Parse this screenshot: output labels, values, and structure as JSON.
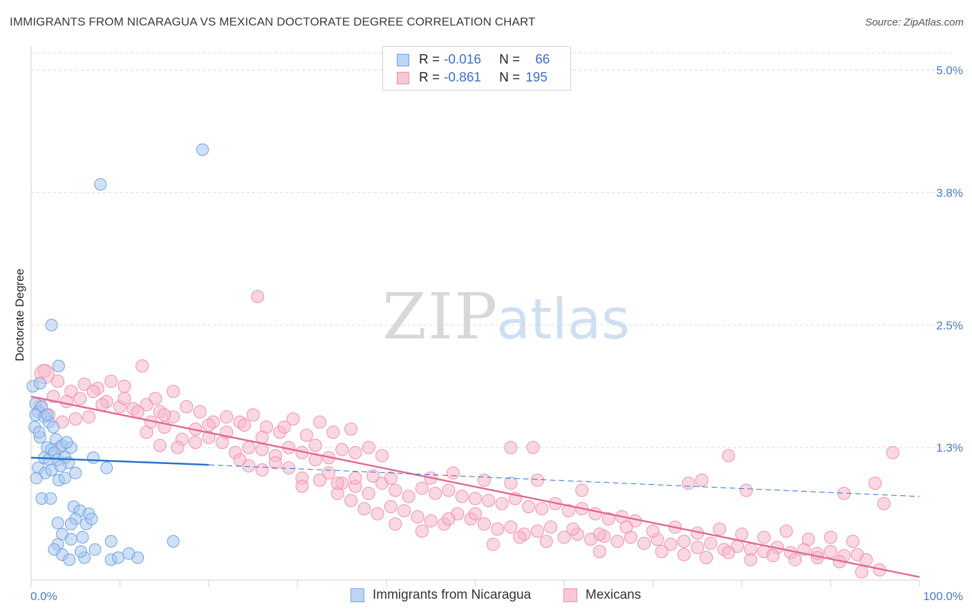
{
  "title": "IMMIGRANTS FROM NICARAGUA VS MEXICAN DOCTORATE DEGREE CORRELATION CHART",
  "source": "Source: ZipAtlas.com",
  "watermark": {
    "zip": "ZIP",
    "atlas": "atlas"
  },
  "legend": {
    "series1": {
      "r_label": "R =",
      "r_value": "-0.016",
      "n_label": "N =",
      "n_value": "66"
    },
    "series2": {
      "r_label": "R =",
      "r_value": "-0.861",
      "n_label": "N =",
      "n_value": "195"
    }
  },
  "bottom_legend": [
    "Immigrants from Nicaragua",
    "Mexicans"
  ],
  "colors": {
    "blue_fill": "#a9c8f0",
    "blue_stroke": "#6f9fde",
    "blue_line": "#2b6fc9",
    "pink_fill": "#f6b8cb",
    "pink_stroke": "#ee8fae",
    "pink_line": "#e06a97",
    "grid": "#d9d9d9",
    "tick": "#4a78c4"
  },
  "chart_data": {
    "type": "scatter",
    "title": "IMMIGRANTS FROM NICARAGUA VS MEXICAN DOCTORATE DEGREE CORRELATION CHART",
    "xlabel": "",
    "ylabel": "Doctorate Degree",
    "xlim": [
      0,
      100
    ],
    "ylim": [
      0,
      5.2
    ],
    "x_tick_labels": [
      "0.0%",
      "100.0%"
    ],
    "y_ticks": [
      1.3,
      2.5,
      3.8,
      5.0
    ],
    "y_tick_labels": [
      "1.3%",
      "2.5%",
      "3.8%",
      "5.0%"
    ],
    "grid": true,
    "legend_position": "top-center",
    "series": [
      {
        "name": "Immigrants from Nicaragua",
        "trend": {
          "x": [
            0,
            20
          ],
          "y": [
            1.2,
            1.13
          ],
          "dashed_to": [
            100,
            0.82
          ]
        },
        "points": [
          [
            0.2,
            1.9
          ],
          [
            1.0,
            1.93
          ],
          [
            0.5,
            1.73
          ],
          [
            0.8,
            1.65
          ],
          [
            1.2,
            1.7
          ],
          [
            0.5,
            1.62
          ],
          [
            1.5,
            1.6
          ],
          [
            0.4,
            1.5
          ],
          [
            2.0,
            1.55
          ],
          [
            2.5,
            1.5
          ],
          [
            1.0,
            1.4
          ],
          [
            1.8,
            1.3
          ],
          [
            2.8,
            1.38
          ],
          [
            3.2,
            1.3
          ],
          [
            2.3,
            1.28
          ],
          [
            3.5,
            1.32
          ],
          [
            4.5,
            1.3
          ],
          [
            1.5,
            1.2
          ],
          [
            2.0,
            1.18
          ],
          [
            2.6,
            1.25
          ],
          [
            3.0,
            1.18
          ],
          [
            3.8,
            1.2
          ],
          [
            4.2,
            1.15
          ],
          [
            0.8,
            1.1
          ],
          [
            1.6,
            1.05
          ],
          [
            2.3,
            1.08
          ],
          [
            3.1,
            0.98
          ],
          [
            3.8,
            1.0
          ],
          [
            5.0,
            1.05
          ],
          [
            0.6,
            1.0
          ],
          [
            7.0,
            1.2
          ],
          [
            8.5,
            1.1
          ],
          [
            1.2,
            0.8
          ],
          [
            2.2,
            0.8
          ],
          [
            4.8,
            0.72
          ],
          [
            5.5,
            0.68
          ],
          [
            6.5,
            0.65
          ],
          [
            5.0,
            0.6
          ],
          [
            4.5,
            0.55
          ],
          [
            6.2,
            0.55
          ],
          [
            6.8,
            0.6
          ],
          [
            3.0,
            0.56
          ],
          [
            3.5,
            0.45
          ],
          [
            4.5,
            0.4
          ],
          [
            5.8,
            0.42
          ],
          [
            9.0,
            0.38
          ],
          [
            3.5,
            0.25
          ],
          [
            4.3,
            0.2
          ],
          [
            6.0,
            0.22
          ],
          [
            9.0,
            0.2
          ],
          [
            9.8,
            0.22
          ],
          [
            12.0,
            0.22
          ],
          [
            16.0,
            0.38
          ],
          [
            3.0,
            0.35
          ],
          [
            2.6,
            0.3
          ],
          [
            5.6,
            0.28
          ],
          [
            7.2,
            0.3
          ],
          [
            11.0,
            0.26
          ],
          [
            2.3,
            2.5
          ],
          [
            3.1,
            2.1
          ],
          [
            7.8,
            3.88
          ],
          [
            19.3,
            4.22
          ],
          [
            0.9,
            1.45
          ],
          [
            1.8,
            1.62
          ],
          [
            3.3,
            1.12
          ],
          [
            4.0,
            1.35
          ]
        ]
      },
      {
        "name": "Mexicans",
        "trend": {
          "x": [
            0,
            100
          ],
          "y": [
            1.8,
            0.03
          ]
        },
        "points": [
          [
            1.5,
            2.05
          ],
          [
            3.0,
            1.95
          ],
          [
            4.5,
            1.85
          ],
          [
            6.0,
            1.92
          ],
          [
            7.5,
            1.88
          ],
          [
            9.0,
            1.95
          ],
          [
            10.5,
            1.9
          ],
          [
            12.5,
            2.1
          ],
          [
            2.5,
            1.8
          ],
          [
            4.0,
            1.75
          ],
          [
            5.5,
            1.78
          ],
          [
            7.0,
            1.85
          ],
          [
            8.5,
            1.75
          ],
          [
            10.0,
            1.7
          ],
          [
            11.5,
            1.68
          ],
          [
            13.0,
            1.72
          ],
          [
            14.5,
            1.65
          ],
          [
            16.0,
            1.6
          ],
          [
            17.5,
            1.7
          ],
          [
            19.0,
            1.65
          ],
          [
            20.5,
            1.55
          ],
          [
            22.0,
            1.6
          ],
          [
            23.5,
            1.55
          ],
          [
            25.0,
            1.62
          ],
          [
            26.5,
            1.5
          ],
          [
            28.0,
            1.45
          ],
          [
            29.5,
            1.58
          ],
          [
            31.0,
            1.42
          ],
          [
            32.5,
            1.55
          ],
          [
            34.0,
            1.45
          ],
          [
            13.0,
            1.45
          ],
          [
            15.0,
            1.5
          ],
          [
            17.0,
            1.38
          ],
          [
            18.5,
            1.48
          ],
          [
            20.0,
            1.4
          ],
          [
            21.5,
            1.35
          ],
          [
            23.0,
            1.25
          ],
          [
            24.5,
            1.3
          ],
          [
            26.0,
            1.28
          ],
          [
            27.5,
            1.22
          ],
          [
            29.0,
            1.3
          ],
          [
            30.5,
            1.25
          ],
          [
            32.0,
            1.32
          ],
          [
            33.5,
            1.2
          ],
          [
            35.0,
            1.28
          ],
          [
            36.5,
            1.25
          ],
          [
            38.0,
            1.3
          ],
          [
            39.5,
            1.22
          ],
          [
            14.5,
            1.32
          ],
          [
            23.5,
            1.18
          ],
          [
            24.5,
            1.12
          ],
          [
            26.0,
            1.08
          ],
          [
            27.5,
            1.15
          ],
          [
            29.0,
            1.1
          ],
          [
            30.5,
            1.0
          ],
          [
            32.0,
            1.18
          ],
          [
            33.5,
            1.05
          ],
          [
            35.0,
            0.95
          ],
          [
            36.5,
            0.92
          ],
          [
            38.0,
            0.85
          ],
          [
            39.5,
            0.95
          ],
          [
            41.0,
            0.88
          ],
          [
            42.5,
            0.82
          ],
          [
            44.0,
            0.9
          ],
          [
            45.5,
            0.85
          ],
          [
            47.0,
            0.88
          ],
          [
            48.5,
            0.82
          ],
          [
            50.0,
            0.8
          ],
          [
            51.5,
            0.78
          ],
          [
            53.0,
            0.75
          ],
          [
            54.5,
            0.8
          ],
          [
            56.0,
            0.72
          ],
          [
            57.5,
            0.7
          ],
          [
            59.0,
            0.75
          ],
          [
            60.5,
            0.68
          ],
          [
            62.0,
            0.7
          ],
          [
            63.5,
            0.65
          ],
          [
            65.0,
            0.6
          ],
          [
            66.5,
            0.62
          ],
          [
            68.0,
            0.58
          ],
          [
            34.5,
            0.85
          ],
          [
            36.0,
            0.78
          ],
          [
            37.5,
            0.7
          ],
          [
            39.0,
            0.65
          ],
          [
            40.5,
            0.72
          ],
          [
            42.0,
            0.68
          ],
          [
            43.5,
            0.62
          ],
          [
            45.0,
            0.58
          ],
          [
            46.5,
            0.55
          ],
          [
            48.0,
            0.65
          ],
          [
            49.5,
            0.6
          ],
          [
            51.0,
            0.55
          ],
          [
            52.5,
            0.5
          ],
          [
            54.0,
            0.52
          ],
          [
            55.5,
            0.45
          ],
          [
            57.0,
            0.48
          ],
          [
            58.5,
            0.52
          ],
          [
            60.0,
            0.42
          ],
          [
            61.5,
            0.45
          ],
          [
            63.0,
            0.4
          ],
          [
            64.5,
            0.43
          ],
          [
            66.0,
            0.38
          ],
          [
            67.5,
            0.42
          ],
          [
            69.0,
            0.36
          ],
          [
            70.5,
            0.4
          ],
          [
            72.0,
            0.35
          ],
          [
            73.5,
            0.38
          ],
          [
            75.0,
            0.32
          ],
          [
            76.5,
            0.36
          ],
          [
            78.0,
            0.3
          ],
          [
            79.5,
            0.33
          ],
          [
            81.0,
            0.3
          ],
          [
            82.5,
            0.28
          ],
          [
            84.0,
            0.32
          ],
          [
            85.5,
            0.27
          ],
          [
            87.0,
            0.3
          ],
          [
            88.5,
            0.26
          ],
          [
            90.0,
            0.28
          ],
          [
            91.5,
            0.24
          ],
          [
            93.0,
            0.25
          ],
          [
            70.0,
            0.48
          ],
          [
            72.5,
            0.52
          ],
          [
            75.0,
            0.46
          ],
          [
            77.5,
            0.5
          ],
          [
            80.0,
            0.45
          ],
          [
            82.5,
            0.42
          ],
          [
            85.0,
            0.48
          ],
          [
            87.5,
            0.4
          ],
          [
            90.0,
            0.42
          ],
          [
            92.5,
            0.38
          ],
          [
            71.0,
            0.28
          ],
          [
            73.5,
            0.25
          ],
          [
            76.0,
            0.22
          ],
          [
            78.5,
            0.27
          ],
          [
            81.0,
            0.2
          ],
          [
            83.5,
            0.24
          ],
          [
            86.0,
            0.2
          ],
          [
            88.5,
            0.22
          ],
          [
            91.0,
            0.18
          ],
          [
            94.0,
            0.2
          ],
          [
            52.0,
            0.35
          ],
          [
            55.0,
            0.42
          ],
          [
            58.0,
            0.38
          ],
          [
            61.0,
            0.5
          ],
          [
            64.0,
            0.45
          ],
          [
            67.0,
            0.52
          ],
          [
            41.0,
            0.55
          ],
          [
            44.0,
            0.48
          ],
          [
            47.0,
            0.6
          ],
          [
            50.0,
            0.65
          ],
          [
            95.0,
            0.95
          ],
          [
            96.0,
            0.75
          ],
          [
            97.0,
            1.25
          ],
          [
            91.5,
            0.85
          ],
          [
            80.5,
            0.88
          ],
          [
            78.5,
            1.22
          ],
          [
            75.5,
            0.98
          ],
          [
            74.0,
            0.95
          ],
          [
            62.0,
            0.88
          ],
          [
            57.0,
            0.98
          ],
          [
            54.0,
            0.95
          ],
          [
            51.0,
            0.98
          ],
          [
            47.5,
            1.05
          ],
          [
            45.0,
            1.0
          ],
          [
            40.5,
            1.0
          ],
          [
            38.5,
            1.02
          ],
          [
            36.5,
            1.0
          ],
          [
            34.5,
            0.95
          ],
          [
            32.5,
            0.98
          ],
          [
            30.5,
            0.92
          ],
          [
            16.0,
            1.85
          ],
          [
            14.0,
            1.78
          ],
          [
            12.0,
            1.65
          ],
          [
            10.5,
            1.78
          ],
          [
            8.0,
            1.72
          ],
          [
            6.5,
            1.6
          ],
          [
            5.0,
            1.58
          ],
          [
            3.5,
            1.55
          ],
          [
            2.0,
            1.62
          ],
          [
            1.0,
            1.72
          ],
          [
            36.0,
            1.48
          ],
          [
            28.5,
            1.5
          ],
          [
            26.0,
            1.4
          ],
          [
            24.0,
            1.52
          ],
          [
            22.0,
            1.45
          ],
          [
            20.0,
            1.52
          ],
          [
            18.5,
            1.35
          ],
          [
            16.5,
            1.3
          ],
          [
            15.0,
            1.62
          ],
          [
            13.5,
            1.55
          ],
          [
            54.0,
            1.3
          ],
          [
            56.5,
            1.3
          ],
          [
            93.5,
            0.08
          ],
          [
            95.5,
            0.1
          ],
          [
            64.0,
            0.28
          ]
        ]
      }
    ],
    "highlight_points": [
      [
        25.5,
        2.78
      ]
    ]
  }
}
